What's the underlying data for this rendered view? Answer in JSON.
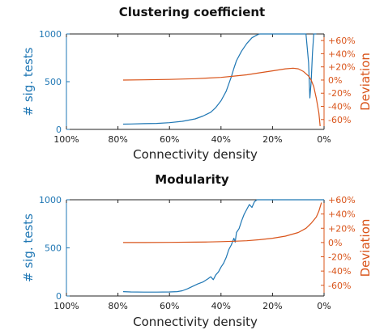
{
  "colors": {
    "tests": "#1f77b4",
    "deviation": "#d9541a",
    "axis": "#222222"
  },
  "chart_data": [
    {
      "type": "line",
      "title": "Clustering coefficient",
      "xlabel": "Connectivity density",
      "ylabel_left": "# sig. tests",
      "ylabel_right": "Deviation",
      "x_ticks": [
        "100%",
        "80%",
        "60%",
        "40%",
        "20%",
        "0%"
      ],
      "x_tick_values": [
        100,
        80,
        60,
        40,
        20,
        0
      ],
      "xlim": [
        100,
        0
      ],
      "y_left_ticks": [
        "0",
        "500",
        "1000"
      ],
      "y_left_tick_values": [
        0,
        500,
        1000
      ],
      "ylim_left": [
        0,
        1000
      ],
      "y_right_ticks": [
        "+60%",
        "+40%",
        "+20%",
        "0%",
        "-20%",
        "-40%",
        "-60%"
      ],
      "y_right_tick_values": [
        60,
        40,
        20,
        0,
        -20,
        -40,
        -60
      ],
      "ylim_right": [
        -75,
        70
      ],
      "series": [
        {
          "name": "# sig. tests",
          "axis": "left",
          "x": [
            78,
            75,
            70,
            65,
            60,
            55,
            50,
            47,
            44,
            42,
            40,
            38,
            36,
            35,
            34,
            32,
            30,
            28,
            26,
            25,
            20,
            15,
            10,
            8,
            7,
            6,
            5.5,
            5,
            4.5,
            4,
            3
          ],
          "y": [
            55,
            57,
            60,
            63,
            70,
            85,
            110,
            140,
            180,
            230,
            300,
            400,
            550,
            640,
            720,
            820,
            900,
            960,
            990,
            1000,
            1000,
            1000,
            1000,
            1000,
            1000,
            700,
            330,
            500,
            800,
            1000,
            1000
          ]
        },
        {
          "name": "Deviation",
          "axis": "right",
          "x": [
            78,
            70,
            60,
            50,
            45,
            40,
            35,
            30,
            25,
            20,
            15,
            12,
            10,
            8,
            6,
            5,
            4,
            3,
            2,
            1.5
          ],
          "y": [
            0,
            0.3,
            1,
            2,
            3,
            4,
            6,
            8,
            11,
            14,
            17,
            18,
            17,
            13,
            6,
            0,
            -10,
            -28,
            -50,
            -70
          ]
        }
      ]
    },
    {
      "type": "line",
      "title": "Modularity",
      "xlabel": "Connectivity density",
      "ylabel_left": "# sig. tests",
      "ylabel_right": "Deviation",
      "x_ticks": [
        "100%",
        "80%",
        "60%",
        "40%",
        "20%",
        "0%"
      ],
      "x_tick_values": [
        100,
        80,
        60,
        40,
        20,
        0
      ],
      "xlim": [
        100,
        0
      ],
      "y_left_ticks": [
        "0",
        "500",
        "1000"
      ],
      "y_left_tick_values": [
        0,
        500,
        1000
      ],
      "ylim_left": [
        0,
        1000
      ],
      "y_right_ticks": [
        "+60%",
        "+40%",
        "+20%",
        "0%",
        "-20%",
        "-40%",
        "-60%"
      ],
      "y_right_tick_values": [
        60,
        40,
        20,
        0,
        -20,
        -40,
        -60
      ],
      "ylim_right": [
        -75,
        60
      ],
      "series": [
        {
          "name": "# sig. tests",
          "axis": "left",
          "x": [
            78,
            75,
            70,
            65,
            60,
            57,
            55,
            53,
            51,
            49,
            47,
            45,
            44,
            43,
            42,
            41,
            40,
            39,
            38,
            37,
            36,
            35,
            34.5,
            34,
            33,
            32,
            31,
            30,
            29,
            28,
            27,
            26,
            25,
            20,
            10,
            0
          ],
          "y": [
            45,
            42,
            40,
            40,
            42,
            45,
            55,
            75,
            100,
            125,
            145,
            180,
            200,
            170,
            220,
            250,
            300,
            340,
            400,
            480,
            530,
            600,
            560,
            660,
            700,
            780,
            850,
            900,
            950,
            920,
            980,
            1000,
            1000,
            1000,
            1000,
            1000
          ]
        },
        {
          "name": "Deviation",
          "axis": "right",
          "x": [
            78,
            70,
            60,
            50,
            45,
            40,
            35,
            30,
            25,
            20,
            15,
            10,
            7,
            5,
            3,
            2,
            1
          ],
          "y": [
            0,
            0,
            0.2,
            0.5,
            0.8,
            1.2,
            1.8,
            2.5,
            4,
            6,
            9,
            14,
            20,
            27,
            36,
            44,
            56
          ]
        }
      ]
    }
  ]
}
